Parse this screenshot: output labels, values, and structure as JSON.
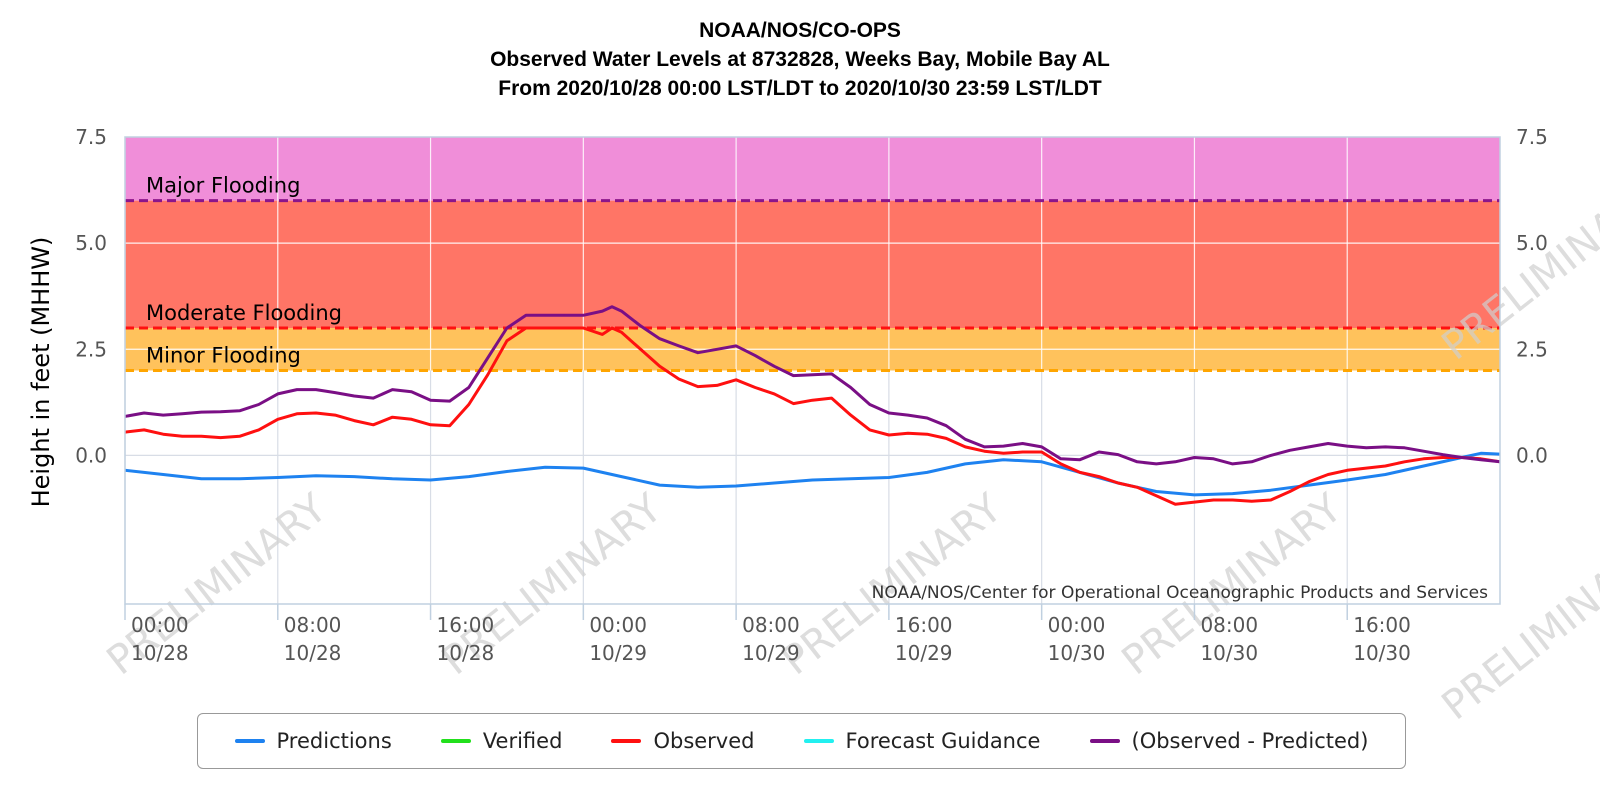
{
  "header": {
    "line1": "NOAA/NOS/CO-OPS",
    "line2": "Observed Water Levels at 8732828, Weeks Bay, Mobile Bay AL",
    "line3": "From 2020/10/28 00:00 LST/LDT to 2020/10/30 23:59 LST/LDT"
  },
  "chart_data": {
    "type": "line",
    "ylabel": "Height in feet (MHHW)",
    "credit": "NOAA/NOS/Center for Operational Oceanographic Products and Services",
    "watermark": "PRELIMINARY",
    "ylim": [
      -3.5,
      7.5
    ],
    "xlim_hours": [
      0,
      72
    ],
    "y_ticks": [
      "7.5",
      "5.0",
      "2.5",
      "0.0"
    ],
    "y_tick_values": [
      7.5,
      5.0,
      2.5,
      0.0
    ],
    "x_ticks": [
      {
        "time": "00:00",
        "date": "10/28",
        "hour": 0
      },
      {
        "time": "08:00",
        "date": "10/28",
        "hour": 8
      },
      {
        "time": "16:00",
        "date": "10/28",
        "hour": 16
      },
      {
        "time": "00:00",
        "date": "10/29",
        "hour": 24
      },
      {
        "time": "08:00",
        "date": "10/29",
        "hour": 32
      },
      {
        "time": "16:00",
        "date": "10/29",
        "hour": 40
      },
      {
        "time": "00:00",
        "date": "10/30",
        "hour": 48
      },
      {
        "time": "08:00",
        "date": "10/30",
        "hour": 56
      },
      {
        "time": "16:00",
        "date": "10/30",
        "hour": 64
      }
    ],
    "flood_thresholds": [
      {
        "name": "Major Flooding",
        "value": 6.0,
        "line_color": "#8b158b",
        "band_color": "#f08ed9"
      },
      {
        "name": "Moderate Flooding",
        "value": 3.0,
        "line_color": "#ff1010",
        "band_color": "#ff7566"
      },
      {
        "name": "Minor Flooding",
        "value": 2.0,
        "line_color": "#ffa500",
        "band_color": "#ffc25c"
      }
    ],
    "series": [
      {
        "name": "Predictions",
        "color": "#1e82f0",
        "x": [
          0,
          2,
          4,
          6,
          8,
          10,
          12,
          14,
          16,
          18,
          20,
          22,
          24,
          26,
          28,
          30,
          32,
          34,
          36,
          38,
          40,
          42,
          44,
          46,
          48,
          50,
          52,
          54,
          56,
          58,
          60,
          62,
          64,
          66,
          68,
          70,
          71,
          72
        ],
        "y": [
          -0.35,
          -0.45,
          -0.55,
          -0.55,
          -0.52,
          -0.48,
          -0.5,
          -0.55,
          -0.58,
          -0.5,
          -0.38,
          -0.28,
          -0.3,
          -0.5,
          -0.7,
          -0.75,
          -0.72,
          -0.65,
          -0.58,
          -0.55,
          -0.52,
          -0.4,
          -0.2,
          -0.1,
          -0.15,
          -0.4,
          -0.65,
          -0.85,
          -0.93,
          -0.9,
          -0.82,
          -0.7,
          -0.58,
          -0.45,
          -0.25,
          -0.05,
          0.05,
          0.03
        ]
      },
      {
        "name": "Verified",
        "color": "#22e01c",
        "x": [],
        "y": []
      },
      {
        "name": "Observed",
        "color": "#ff1010",
        "x": [
          0,
          1,
          2,
          3,
          4,
          5,
          6,
          7,
          8,
          9,
          10,
          11,
          12,
          13,
          14,
          15,
          16,
          17,
          18,
          19,
          20,
          21,
          22,
          23,
          24,
          25,
          25.5,
          26,
          27,
          28,
          29,
          30,
          31,
          32,
          33,
          34,
          35,
          36,
          37,
          38,
          39,
          40,
          41,
          42,
          43,
          44,
          45,
          46,
          47,
          48,
          49,
          50,
          51,
          52,
          53,
          54,
          55,
          56,
          57,
          58,
          59,
          60,
          61,
          62,
          63,
          64,
          65,
          66,
          67,
          68,
          69,
          70,
          71,
          72
        ],
        "y": [
          0.55,
          0.6,
          0.5,
          0.45,
          0.45,
          0.42,
          0.45,
          0.6,
          0.85,
          0.98,
          1.0,
          0.95,
          0.82,
          0.72,
          0.9,
          0.85,
          0.72,
          0.7,
          1.2,
          1.9,
          2.7,
          3.0,
          3.0,
          3.0,
          3.0,
          2.85,
          3.0,
          2.9,
          2.5,
          2.1,
          1.8,
          1.62,
          1.65,
          1.78,
          1.6,
          1.45,
          1.22,
          1.3,
          1.35,
          0.95,
          0.6,
          0.48,
          0.52,
          0.5,
          0.4,
          0.2,
          0.1,
          0.05,
          0.08,
          0.08,
          -0.2,
          -0.4,
          -0.5,
          -0.65,
          -0.75,
          -0.95,
          -1.15,
          -1.1,
          -1.05,
          -1.05,
          -1.08,
          -1.05,
          -0.85,
          -0.62,
          -0.45,
          -0.35,
          -0.3,
          -0.25,
          -0.15,
          -0.08,
          -0.05,
          -0.05,
          -0.08,
          -0.15
        ]
      },
      {
        "name": "Forecast Guidance",
        "color": "#22f0f0",
        "x": [],
        "y": []
      },
      {
        "name": "(Observed - Predicted)",
        "color": "#7a0f85",
        "x": [
          0,
          1,
          2,
          3,
          4,
          5,
          6,
          7,
          8,
          9,
          10,
          11,
          12,
          13,
          14,
          15,
          16,
          17,
          18,
          19,
          20,
          21,
          22,
          23,
          24,
          25,
          25.5,
          26,
          27,
          28,
          29,
          30,
          31,
          32,
          33,
          34,
          35,
          36,
          37,
          38,
          39,
          40,
          41,
          42,
          43,
          44,
          45,
          46,
          47,
          48,
          49,
          50,
          51,
          52,
          53,
          54,
          55,
          56,
          57,
          58,
          59,
          60,
          61,
          62,
          63,
          64,
          65,
          66,
          67,
          68,
          69,
          70,
          71,
          72
        ],
        "y": [
          0.92,
          1.0,
          0.95,
          0.98,
          1.02,
          1.03,
          1.05,
          1.2,
          1.45,
          1.55,
          1.55,
          1.48,
          1.4,
          1.35,
          1.55,
          1.5,
          1.3,
          1.28,
          1.6,
          2.3,
          3.0,
          3.3,
          3.3,
          3.3,
          3.3,
          3.4,
          3.5,
          3.4,
          3.05,
          2.75,
          2.58,
          2.42,
          2.5,
          2.58,
          2.35,
          2.1,
          1.88,
          1.9,
          1.92,
          1.6,
          1.2,
          1.0,
          0.95,
          0.88,
          0.7,
          0.38,
          0.2,
          0.22,
          0.28,
          0.2,
          -0.08,
          -0.1,
          0.08,
          0.02,
          -0.15,
          -0.2,
          -0.15,
          -0.05,
          -0.08,
          -0.2,
          -0.15,
          0.0,
          0.12,
          0.2,
          0.28,
          0.22,
          0.18,
          0.2,
          0.18,
          0.1,
          0.02,
          -0.05,
          -0.1,
          -0.15
        ]
      }
    ],
    "legend_placement": "bottom",
    "grid": true
  }
}
